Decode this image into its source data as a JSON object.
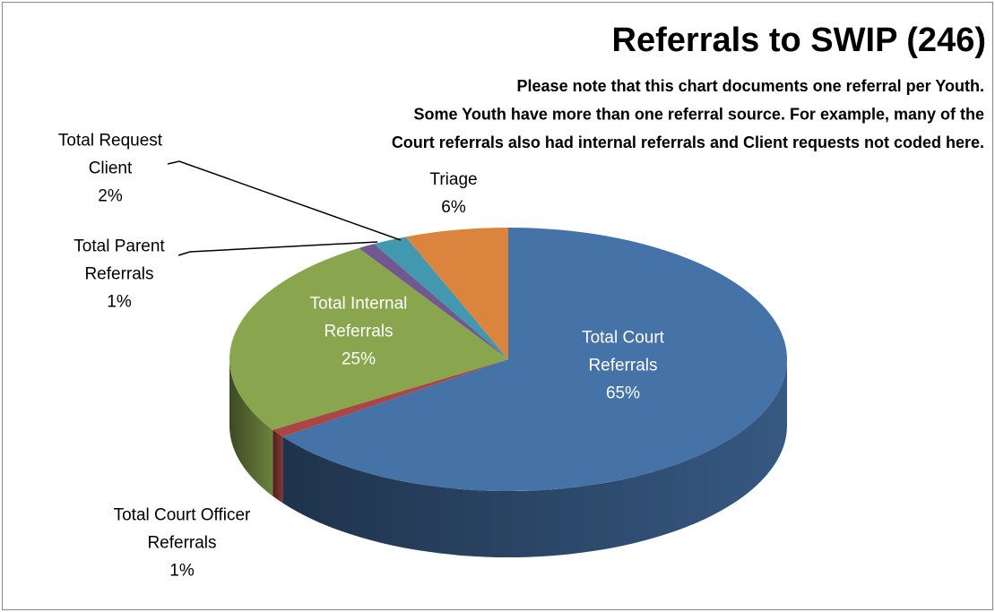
{
  "chart_data": {
    "type": "pie",
    "title": "Referrals to SWIP (246)",
    "note": [
      "Please note that this chart documents one referral per Youth.",
      "Some Youth have more than one referral source. For example, many of the",
      "Court referrals also had internal referrals and Client requests not coded here."
    ],
    "categories": [
      "Total Court Referrals",
      "Total Court Officer Referrals",
      "Total Internal Referrals",
      "Total Parent Referrals",
      "Total Request Client",
      "Triage"
    ],
    "values": [
      65,
      1,
      25,
      1,
      2,
      6
    ],
    "value_labels": [
      "65%",
      "1%",
      "25%",
      "1%",
      "2%",
      "6%"
    ],
    "colors": [
      "#4572a7",
      "#aa4643",
      "#89a54e",
      "#71588f",
      "#4198af",
      "#db843d"
    ],
    "style": "3d"
  }
}
